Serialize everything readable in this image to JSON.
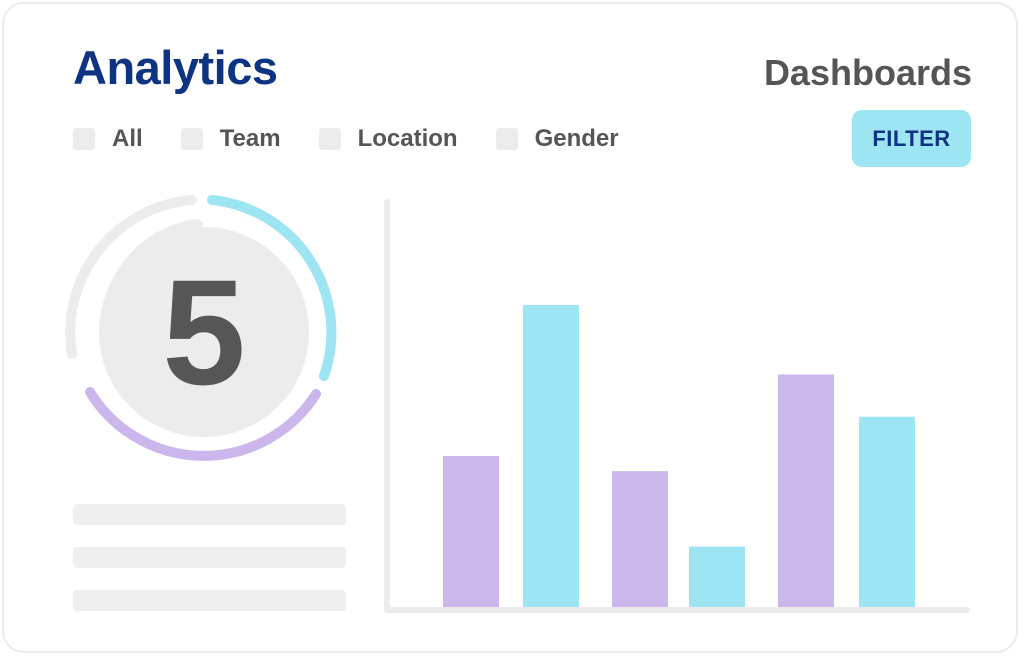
{
  "header": {
    "title": "Analytics",
    "subtitle": "Dashboards"
  },
  "filters": [
    {
      "label": "All",
      "checked": false
    },
    {
      "label": "Team",
      "checked": false
    },
    {
      "label": "Location",
      "checked": false
    },
    {
      "label": "Gender",
      "checked": false
    }
  ],
  "filter_button": {
    "label": "FILTER"
  },
  "gauge": {
    "value": "5"
  },
  "colors": {
    "primary": "#0d3483",
    "cyan": "#9de5f2",
    "purple": "#cbb7ec",
    "track": "#ececec",
    "text": "#555555"
  },
  "chart_data": {
    "type": "bar",
    "title": "",
    "xlabel": "",
    "ylabel": "",
    "ylim": [
      0,
      100
    ],
    "bars": [
      {
        "value": 50,
        "color": "#cbb7ec"
      },
      {
        "value": 100,
        "color": "#9de5f2"
      },
      {
        "value": 45,
        "color": "#cbb7ec"
      },
      {
        "value": 20,
        "color": "#9de5f2"
      },
      {
        "value": 77,
        "color": "#cbb7ec"
      },
      {
        "value": 63,
        "color": "#9de5f2"
      }
    ]
  }
}
